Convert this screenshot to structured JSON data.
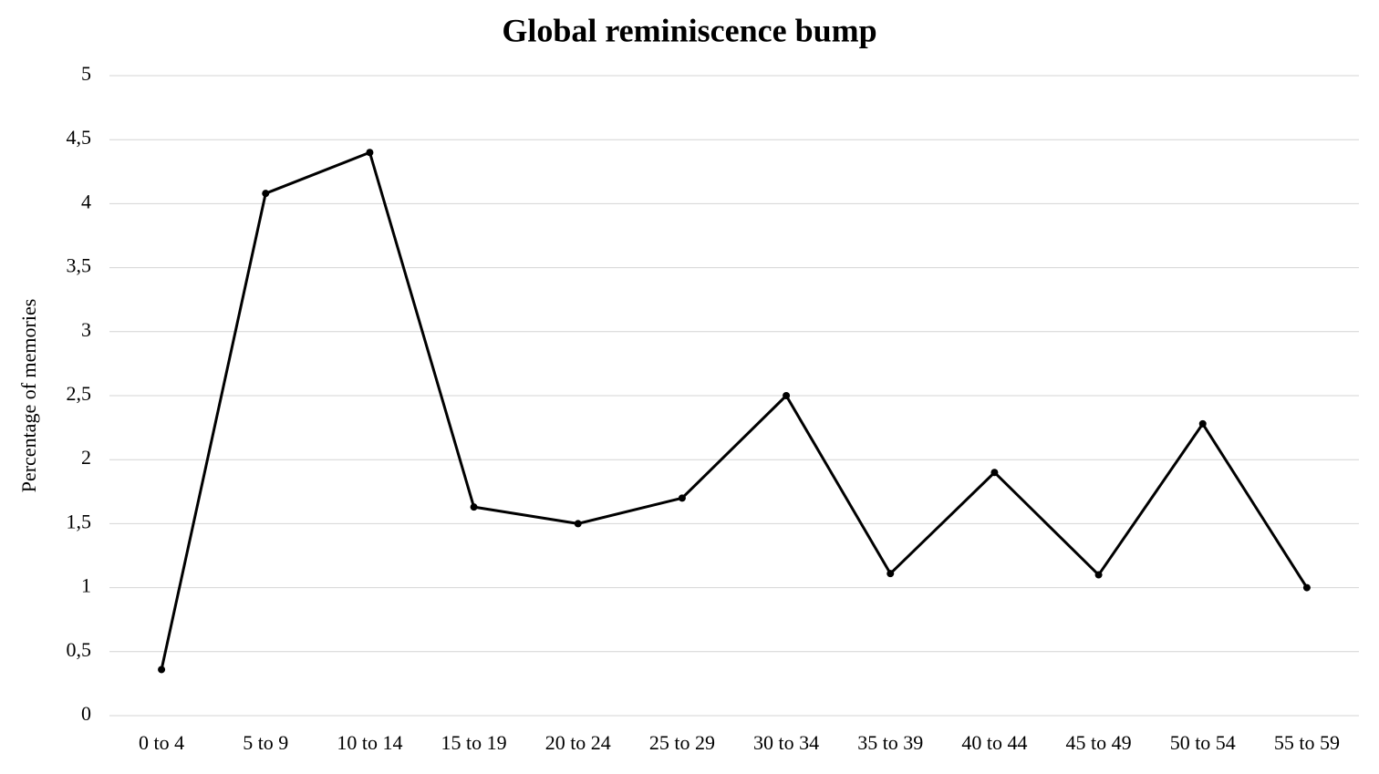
{
  "chart_data": {
    "type": "line",
    "title": "Global reminiscence bump",
    "y_label": "Percentage  of memories",
    "categories": [
      "0 to 4",
      "5 to 9",
      "10 to 14",
      "15 to 19",
      "20 to 24",
      "25 to 29",
      "30 to 34",
      "35 to 39",
      "40 to 44",
      "45 to 49",
      "50 to 54",
      "55 to 59"
    ],
    "values": [
      0.36,
      4.08,
      4.4,
      1.63,
      1.5,
      1.7,
      2.5,
      1.11,
      1.9,
      1.1,
      2.28,
      1.0
    ],
    "color": "#000000",
    "ylim": [
      0,
      5
    ],
    "yticks": [
      0,
      {
        "value": 0.5,
        "label": "0,5"
      },
      1,
      {
        "value": 1.5,
        "label": "1,5"
      },
      2,
      {
        "value": 2.5,
        "label": "2,5"
      },
      3,
      {
        "value": 3.5,
        "label": "3,5"
      },
      4,
      {
        "value": 4.5,
        "label": "4,5"
      },
      5
    ],
    "grid": true
  }
}
